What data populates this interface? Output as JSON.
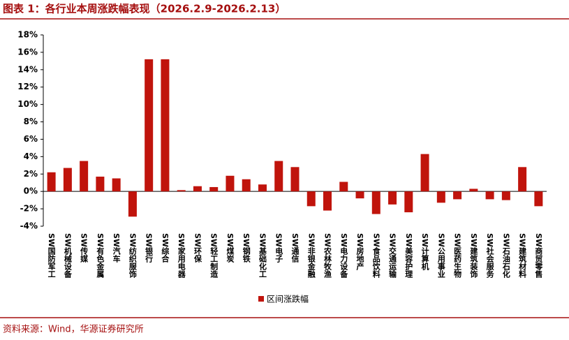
{
  "title": "图表 1：各行业本周涨跌幅表现（2026.2.9-2026.2.13）",
  "source": "资料来源：Wind，华源证券研究所",
  "chart_data": {
    "type": "bar",
    "categories": [
      "SW国防军工",
      "SW机械设备",
      "SW传媒",
      "SW有色金属",
      "SW汽车",
      "SW纺织服饰",
      "SW银行",
      "SW综合",
      "SW家用电器",
      "SW环保",
      "SW轻工制造",
      "SW煤炭",
      "SW钢铁",
      "SW基础化工",
      "SW电子",
      "SW通信",
      "SW非银金融",
      "SW农林牧渔",
      "SW电力设备",
      "SW房地产",
      "SW食品饮料",
      "SW交通运输",
      "SW美容护理",
      "SW计算机",
      "SW公用事业",
      "SW医药生物",
      "SW建筑装饰",
      "SW社会服务",
      "SW石油石化",
      "SW建筑材料",
      "SW商贸零售"
    ],
    "series": [
      {
        "name": "区间涨跌幅",
        "color": "#c0140c",
        "values": [
          2.2,
          2.7,
          3.5,
          1.7,
          1.5,
          -2.9,
          15.2,
          15.2,
          0.15,
          0.6,
          0.5,
          1.8,
          1.4,
          0.8,
          3.5,
          2.8,
          -1.7,
          -2.2,
          1.1,
          -0.8,
          -2.6,
          -1.5,
          -2.4,
          4.3,
          -1.3,
          -0.9,
          0.3,
          -0.9,
          -1.0,
          2.8,
          -1.7
        ]
      }
    ],
    "ylim": [
      -4,
      18
    ],
    "yticks": [
      {
        "value": -4,
        "label": "-4%"
      },
      {
        "value": -2,
        "label": "-2%"
      },
      {
        "value": 0,
        "label": "0%"
      },
      {
        "value": 2,
        "label": "2%"
      },
      {
        "value": 4,
        "label": "4%"
      },
      {
        "value": 6,
        "label": "6%"
      },
      {
        "value": 8,
        "label": "8%"
      },
      {
        "value": 10,
        "label": "10%"
      },
      {
        "value": 12,
        "label": "12%"
      },
      {
        "value": 14,
        "label": "14%"
      },
      {
        "value": 16,
        "label": "16%"
      },
      {
        "value": 18,
        "label": "18%"
      }
    ],
    "legend": "bottom",
    "grid": false
  }
}
